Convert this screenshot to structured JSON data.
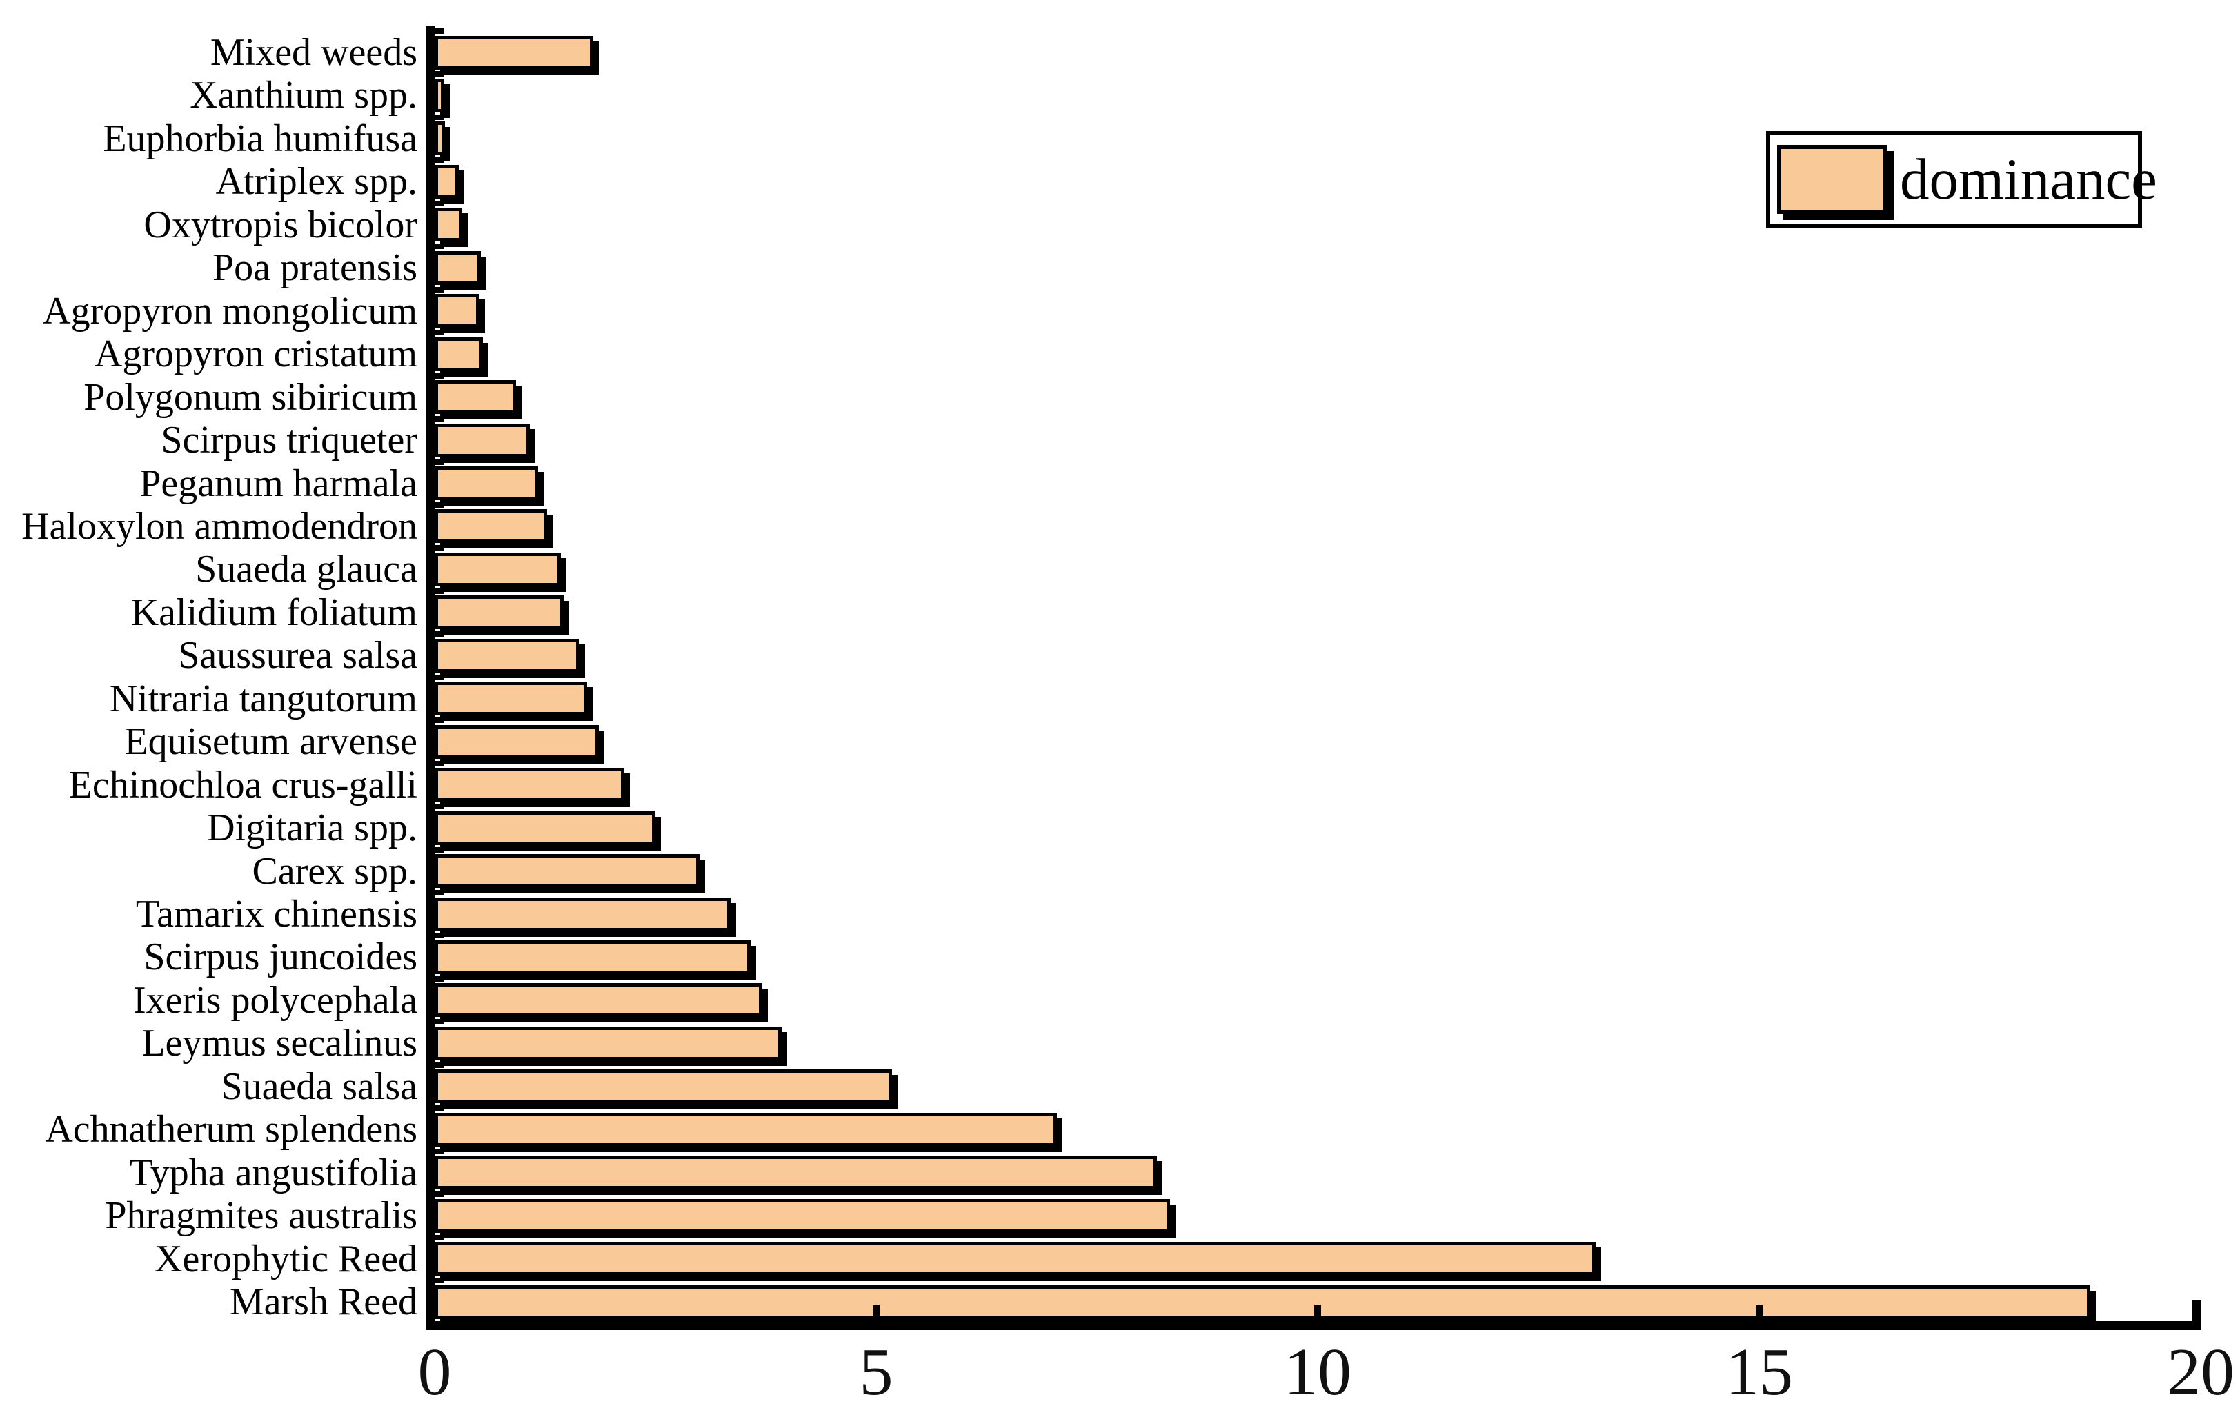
{
  "chart_data": {
    "type": "bar",
    "orientation": "horizontal",
    "title": "",
    "xlabel": "",
    "ylabel": "",
    "categories": [
      "Mixed weeds",
      "Xanthium spp.",
      "Euphorbia humifusa",
      "Atriplex spp.",
      "Oxytropis bicolor",
      "Poa pratensis",
      "Agropyron mongolicum",
      "Agropyron cristatum",
      "Polygonum sibiricum",
      "Scirpus triqueter",
      "Peganum harmala",
      "Haloxylon ammodendron",
      "Suaeda glauca",
      "Kalidium foliatum",
      "Saussurea salsa",
      "Nitraria tangutorum",
      "Equisetum arvense",
      "Echinochloa crus-galli",
      "Digitaria spp.",
      "Carex spp.",
      "Tamarix chinensis",
      "Scirpus juncoides",
      "Ixeris polycephala",
      "Leymus secalinus",
      "Suaeda salsa",
      "Achnatherum splendens",
      "Typha angustifolia",
      "Phragmites australis",
      "Xerophytic Reed",
      "Marsh Reed"
    ],
    "series": [
      {
        "name": "dominance",
        "values": [
          1.8,
          0.11,
          0.12,
          0.27,
          0.31,
          0.52,
          0.51,
          0.55,
          0.92,
          1.08,
          1.17,
          1.27,
          1.43,
          1.46,
          1.64,
          1.73,
          1.86,
          2.15,
          2.5,
          3.0,
          3.35,
          3.58,
          3.71,
          3.93,
          5.18,
          7.05,
          8.18,
          8.33,
          13.15,
          18.75
        ]
      }
    ],
    "xlim": [
      0,
      20
    ],
    "x_ticks": [
      0,
      5,
      10,
      15,
      20
    ],
    "grid": false,
    "legend": {
      "label": "dominance",
      "position": "top-right"
    },
    "colors": {
      "bar_fill": "#FAC998",
      "bar_border": "#000000",
      "axis": "#000000",
      "background": "#FFFFFF",
      "text": "#000000"
    }
  }
}
